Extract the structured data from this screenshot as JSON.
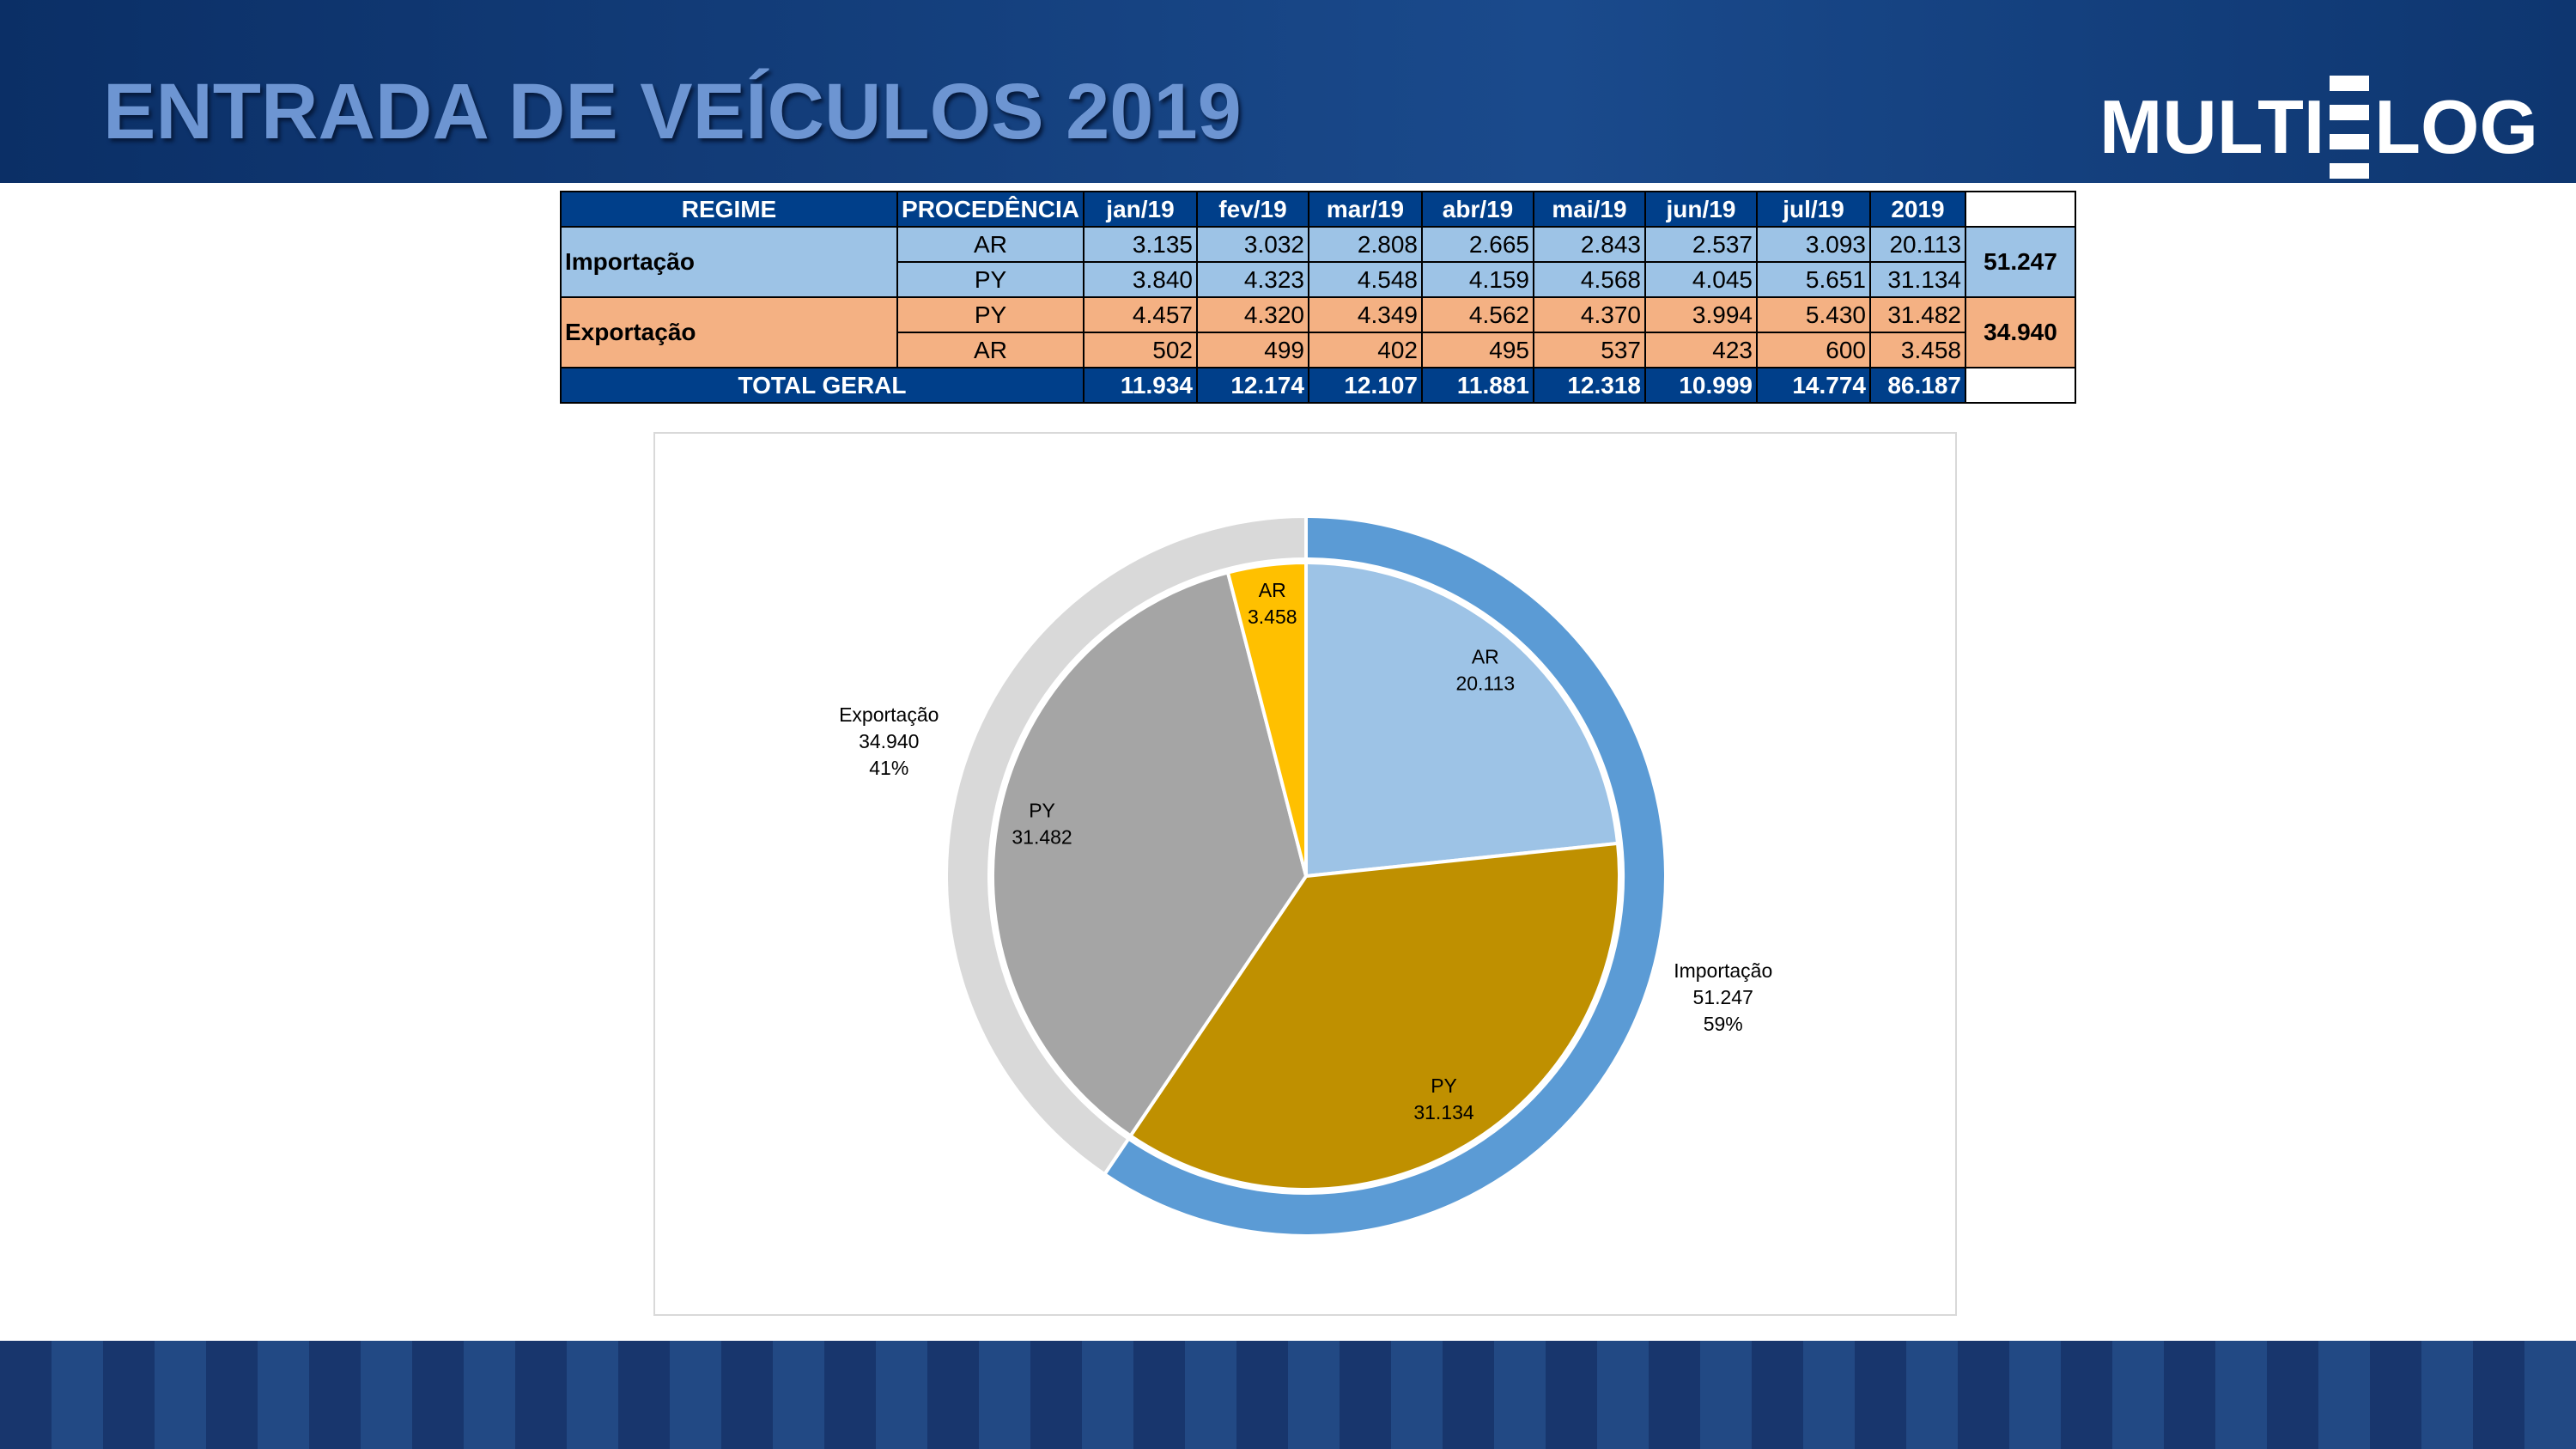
{
  "header": {
    "title": "ENTRADA DE VEÍCULOS 2019",
    "logo_left": "MULTI",
    "logo_right": "LOG"
  },
  "table": {
    "header": [
      "REGIME",
      "PROCEDÊNCIA",
      "jan/19",
      "fev/19",
      "mar/19",
      "abr/19",
      "mai/19",
      "jun/19",
      "jul/19",
      "2019"
    ],
    "groups": [
      {
        "regime": "Importação",
        "total": "51.247",
        "rows": [
          {
            "procedencia": "AR",
            "values": [
              "3.135",
              "3.032",
              "2.808",
              "2.665",
              "2.843",
              "2.537",
              "3.093",
              "20.113"
            ]
          },
          {
            "procedencia": "PY",
            "values": [
              "3.840",
              "4.323",
              "4.548",
              "4.159",
              "4.568",
              "4.045",
              "5.651",
              "31.134"
            ]
          }
        ]
      },
      {
        "regime": "Exportação",
        "total": "34.940",
        "rows": [
          {
            "procedencia": "PY",
            "values": [
              "4.457",
              "4.320",
              "4.349",
              "4.562",
              "4.370",
              "3.994",
              "5.430",
              "31.482"
            ]
          },
          {
            "procedencia": "AR",
            "values": [
              "502",
              "499",
              "402",
              "495",
              "537",
              "423",
              "600",
              "3.458"
            ]
          }
        ]
      }
    ],
    "total_row": {
      "label": "TOTAL GERAL",
      "values": [
        "11.934",
        "12.174",
        "12.107",
        "11.881",
        "12.318",
        "10.999",
        "14.774",
        "86.187"
      ]
    }
  },
  "chart_data": {
    "type": "nested-pie",
    "rings": [
      {
        "categories": [
          "Importação",
          "Exportação"
        ],
        "values": [
          51247,
          34940
        ],
        "value_labels": [
          "51.247",
          "34.940"
        ],
        "percent_labels": [
          "59%",
          "41%"
        ],
        "colors": [
          "#5b9bd5",
          "#d9d9d9"
        ]
      },
      {
        "categories": [
          "AR",
          "PY",
          "PY",
          "AR"
        ],
        "values": [
          20113,
          31134,
          31482,
          3458
        ],
        "value_labels": [
          "20.113",
          "31.134",
          "31.482",
          "3.458"
        ],
        "colors": [
          "#9dc3e6",
          "#bf9000",
          "#a5a5a5",
          "#ffc000"
        ]
      }
    ]
  }
}
